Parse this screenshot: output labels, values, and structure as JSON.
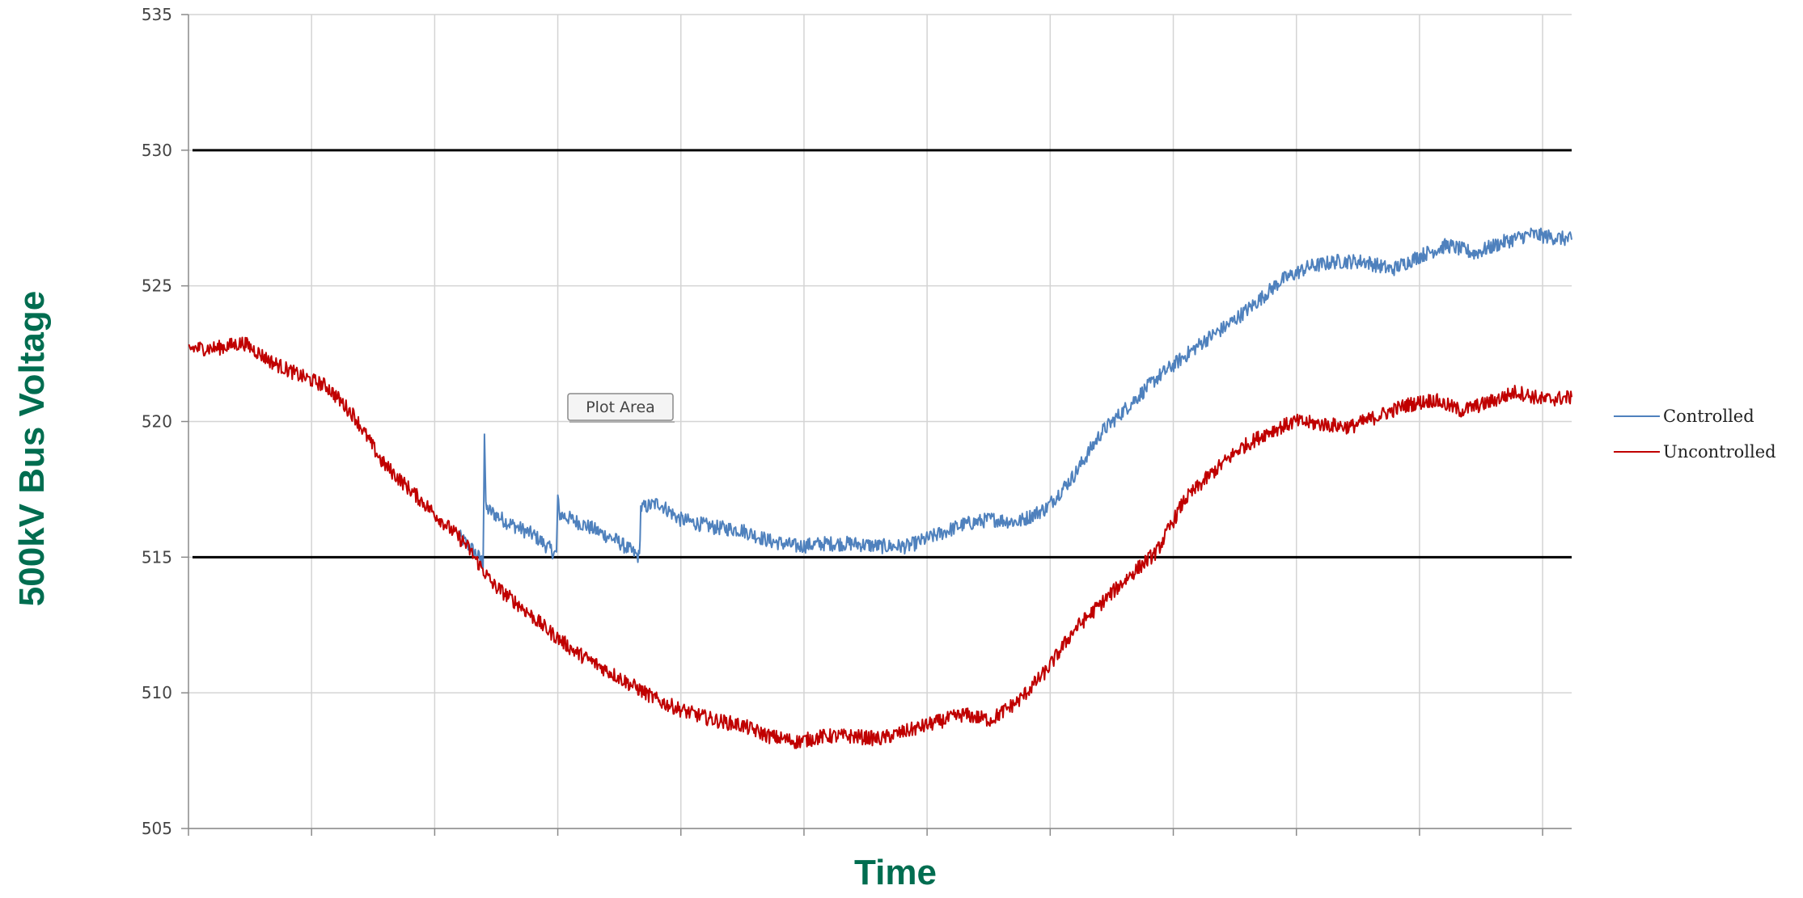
{
  "chart_data": {
    "type": "line",
    "xlabel": "Time",
    "ylabel": "500kV Bus Voltage",
    "ylim": [
      505,
      535
    ],
    "yticks": [
      505,
      510,
      515,
      520,
      525,
      530,
      535
    ],
    "xlim": [
      0,
      100
    ],
    "xticks": [
      0,
      8.9,
      17.8,
      26.7,
      35.6,
      44.5,
      53.4,
      62.3,
      71.2,
      80.1,
      89.0,
      97.9
    ],
    "grid": true,
    "reference_lines": [
      530,
      515
    ],
    "legend_position": "right",
    "tooltip": "Plot Area",
    "series": [
      {
        "name": "Controlled",
        "color": "#4f81bd",
        "points": [
          [
            19.5,
            515.8
          ],
          [
            20.5,
            515.3
          ],
          [
            21.3,
            514.8
          ],
          [
            21.4,
            519.6
          ],
          [
            21.5,
            516.8
          ],
          [
            23,
            516.3
          ],
          [
            25,
            515.8
          ],
          [
            26.6,
            515.1
          ],
          [
            26.7,
            517.2
          ],
          [
            26.8,
            516.6
          ],
          [
            29,
            516.1
          ],
          [
            31,
            515.6
          ],
          [
            32.6,
            515.0
          ],
          [
            32.7,
            516.8
          ],
          [
            34,
            517.0
          ],
          [
            35.5,
            516.4
          ],
          [
            38,
            516.1
          ],
          [
            40,
            516.0
          ],
          [
            42,
            515.6
          ],
          [
            44,
            515.4
          ],
          [
            46,
            515.5
          ],
          [
            48,
            515.5
          ],
          [
            50,
            515.4
          ],
          [
            52,
            515.4
          ],
          [
            54,
            515.8
          ],
          [
            56,
            516.2
          ],
          [
            58,
            516.4
          ],
          [
            60,
            516.3
          ],
          [
            62,
            516.8
          ],
          [
            64,
            518.0
          ],
          [
            66,
            519.6
          ],
          [
            68,
            520.6
          ],
          [
            70,
            521.6
          ],
          [
            72,
            522.4
          ],
          [
            73.5,
            523.0
          ],
          [
            75,
            523.5
          ],
          [
            77,
            524.3
          ],
          [
            79,
            525.2
          ],
          [
            81,
            525.7
          ],
          [
            83,
            525.9
          ],
          [
            85,
            525.9
          ],
          [
            87,
            525.6
          ],
          [
            89,
            526.1
          ],
          [
            91,
            526.5
          ],
          [
            93,
            526.2
          ],
          [
            95,
            526.6
          ],
          [
            97,
            526.9
          ],
          [
            98.5,
            526.8
          ],
          [
            100,
            526.7
          ]
        ]
      },
      {
        "name": "Uncontrolled",
        "color": "#c00000",
        "points": [
          [
            0,
            522.7
          ],
          [
            2,
            522.7
          ],
          [
            4,
            522.9
          ],
          [
            6,
            522.2
          ],
          [
            8,
            521.7
          ],
          [
            10,
            521.3
          ],
          [
            12,
            520.2
          ],
          [
            14,
            518.5
          ],
          [
            16,
            517.5
          ],
          [
            18,
            516.5
          ],
          [
            20,
            515.5
          ],
          [
            22,
            514.0
          ],
          [
            24,
            513.2
          ],
          [
            26,
            512.3
          ],
          [
            28,
            511.5
          ],
          [
            30,
            510.9
          ],
          [
            32,
            510.3
          ],
          [
            34,
            509.7
          ],
          [
            36,
            509.3
          ],
          [
            38,
            509.0
          ],
          [
            40,
            508.8
          ],
          [
            42,
            508.4
          ],
          [
            44,
            508.2
          ],
          [
            46,
            508.4
          ],
          [
            48,
            508.4
          ],
          [
            50,
            508.3
          ],
          [
            52,
            508.6
          ],
          [
            54,
            508.9
          ],
          [
            56,
            509.2
          ],
          [
            58,
            509.0
          ],
          [
            60,
            509.7
          ],
          [
            62,
            510.8
          ],
          [
            64,
            512.3
          ],
          [
            66,
            513.3
          ],
          [
            68,
            514.3
          ],
          [
            70,
            515.2
          ],
          [
            72,
            517.1
          ],
          [
            74,
            518.1
          ],
          [
            76,
            519.0
          ],
          [
            78,
            519.6
          ],
          [
            80,
            520.0
          ],
          [
            82,
            519.9
          ],
          [
            84,
            519.8
          ],
          [
            86,
            520.2
          ],
          [
            88,
            520.6
          ],
          [
            90,
            520.8
          ],
          [
            92,
            520.4
          ],
          [
            94,
            520.7
          ],
          [
            96,
            521.1
          ],
          [
            98,
            520.8
          ],
          [
            100,
            520.9
          ]
        ]
      }
    ]
  },
  "colors": {
    "axis_title": "#006d50",
    "grid": "#d4d4d4",
    "axis": "#8a8a8a",
    "ref_line": "#000000"
  }
}
